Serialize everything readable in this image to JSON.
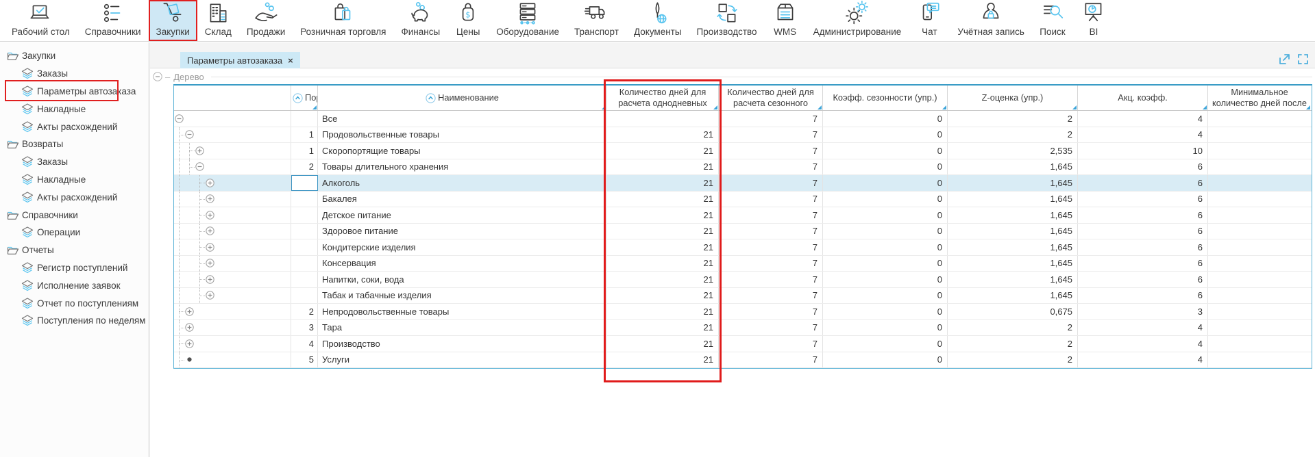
{
  "toolbar": {
    "active_id": "purchases",
    "items": [
      {
        "id": "desktop",
        "icon": "desktop-icon",
        "label": "Рабочий стол"
      },
      {
        "id": "directories",
        "icon": "directories-icon",
        "label": "Справочники"
      },
      {
        "id": "purchases",
        "icon": "purchases-icon",
        "label": "Закупки"
      },
      {
        "id": "warehouse",
        "icon": "warehouse-icon",
        "label": "Склад"
      },
      {
        "id": "sales",
        "icon": "sales-icon",
        "label": "Продажи"
      },
      {
        "id": "retail",
        "icon": "retail-icon",
        "label": "Розничная торговля"
      },
      {
        "id": "finance",
        "icon": "finance-icon",
        "label": "Финансы"
      },
      {
        "id": "prices",
        "icon": "prices-icon",
        "label": "Цены"
      },
      {
        "id": "equipment",
        "icon": "equipment-icon",
        "label": "Оборудование"
      },
      {
        "id": "transport",
        "icon": "transport-icon",
        "label": "Транспорт"
      },
      {
        "id": "documents",
        "icon": "documents-icon",
        "label": "Документы"
      },
      {
        "id": "production",
        "icon": "production-icon",
        "label": "Производство"
      },
      {
        "id": "wms",
        "icon": "wms-icon",
        "label": "WMS"
      },
      {
        "id": "admin",
        "icon": "admin-icon",
        "label": "Администрирование"
      },
      {
        "id": "chat",
        "icon": "chat-icon",
        "label": "Чат"
      },
      {
        "id": "account",
        "icon": "account-icon",
        "label": "Учётная запись"
      },
      {
        "id": "search",
        "icon": "search-icon",
        "label": "Поиск"
      },
      {
        "id": "bi",
        "icon": "bi-icon",
        "label": "BI"
      }
    ]
  },
  "sidebar": {
    "entries": [
      {
        "type": "group",
        "id": "purchases",
        "label": "Закупки"
      },
      {
        "type": "item",
        "id": "orders",
        "label": "Заказы"
      },
      {
        "type": "item",
        "id": "auto-order-params",
        "label": "Параметры автозаказа",
        "highlighted": true
      },
      {
        "type": "item",
        "id": "invoices",
        "label": "Накладные"
      },
      {
        "type": "item",
        "id": "discrepancy-acts",
        "label": "Акты расхождений"
      },
      {
        "type": "group",
        "id": "returns",
        "label": "Возвраты"
      },
      {
        "type": "item",
        "id": "orders-returns",
        "label": "Заказы"
      },
      {
        "type": "item",
        "id": "invoices-returns",
        "label": "Накладные"
      },
      {
        "type": "item",
        "id": "discrepancy-acts-returns",
        "label": "Акты расхождений"
      },
      {
        "type": "group",
        "id": "directories",
        "label": "Справочники"
      },
      {
        "type": "item",
        "id": "operations",
        "label": "Операции"
      },
      {
        "type": "group",
        "id": "reports",
        "label": "Отчеты"
      },
      {
        "type": "item",
        "id": "receipts-register",
        "label": "Регистр поступлений"
      },
      {
        "type": "item",
        "id": "requests-execution",
        "label": "Исполнение заявок"
      },
      {
        "type": "item",
        "id": "receipts-report",
        "label": "Отчет по поступлениям"
      },
      {
        "type": "item",
        "id": "receipts-by-weeks",
        "label": "Поступления по неделям"
      }
    ]
  },
  "tab": {
    "label": "Параметры автозаказа",
    "close": "×"
  },
  "panel": {
    "label": "Дерево"
  },
  "window_icons": [
    {
      "id": "open-in-window",
      "icon": "open-arrow-icon"
    },
    {
      "id": "fullscreen",
      "icon": "fullscreen-icon"
    }
  ],
  "table": {
    "columns": [
      {
        "id": "tree",
        "label": ""
      },
      {
        "id": "order",
        "label": "Пор",
        "sort_icon": true
      },
      {
        "id": "name",
        "label": "Наименование",
        "sort_icon": true
      },
      {
        "id": "days_oneday",
        "label": "Количество дней для расчета однодневных",
        "highlighted": true
      },
      {
        "id": "days_seasonal",
        "label": "Количество дней для расчета сезонного"
      },
      {
        "id": "seasonality_coeff",
        "label": "Коэфф. сезонности (упр.)"
      },
      {
        "id": "z_score",
        "label": "Z-оценка (упр.)"
      },
      {
        "id": "promo_coeff",
        "label": "Акц. коэфф."
      },
      {
        "id": "min_days_after",
        "label": "Минимальное количество дней после"
      }
    ],
    "rows": [
      {
        "name": "Все",
        "order": "",
        "level": 0,
        "expander": "minus",
        "guides": [],
        "values": [
          "",
          "7",
          "0",
          "2",
          "4",
          ""
        ]
      },
      {
        "name": "Продовольственные товары",
        "order": "1",
        "level": 1,
        "expander": "minus",
        "guides": [
          0
        ],
        "values": [
          "21",
          "7",
          "0",
          "2",
          "4",
          ""
        ]
      },
      {
        "name": "Скоропортящие товары",
        "order": "1",
        "level": 2,
        "expander": "plus",
        "guides": [
          0,
          1
        ],
        "values": [
          "21",
          "7",
          "0",
          "2,535",
          "10",
          ""
        ]
      },
      {
        "name": "Товары длительного хранения",
        "order": "2",
        "level": 2,
        "expander": "minus",
        "guides": [
          0,
          1
        ],
        "values": [
          "21",
          "7",
          "0",
          "1,645",
          "6",
          ""
        ]
      },
      {
        "name": "Алкоголь",
        "order": "",
        "level": 3,
        "expander": "plus",
        "guides": [
          0,
          2
        ],
        "values": [
          "21",
          "7",
          "0",
          "1,645",
          "6",
          ""
        ],
        "selected": true,
        "focused_cell": "order"
      },
      {
        "name": "Бакалея",
        "order": "",
        "level": 3,
        "expander": "plus",
        "guides": [
          0,
          2
        ],
        "values": [
          "21",
          "7",
          "0",
          "1,645",
          "6",
          ""
        ]
      },
      {
        "name": "Детское питание",
        "order": "",
        "level": 3,
        "expander": "plus",
        "guides": [
          0,
          2
        ],
        "values": [
          "21",
          "7",
          "0",
          "1,645",
          "6",
          ""
        ]
      },
      {
        "name": "Здоровое питание",
        "order": "",
        "level": 3,
        "expander": "plus",
        "guides": [
          0,
          2
        ],
        "values": [
          "21",
          "7",
          "0",
          "1,645",
          "6",
          ""
        ]
      },
      {
        "name": "Кондитерские изделия",
        "order": "",
        "level": 3,
        "expander": "plus",
        "guides": [
          0,
          2
        ],
        "values": [
          "21",
          "7",
          "0",
          "1,645",
          "6",
          ""
        ]
      },
      {
        "name": "Консервация",
        "order": "",
        "level": 3,
        "expander": "plus",
        "guides": [
          0,
          2
        ],
        "values": [
          "21",
          "7",
          "0",
          "1,645",
          "6",
          ""
        ]
      },
      {
        "name": "Напитки, соки, вода",
        "order": "",
        "level": 3,
        "expander": "plus",
        "guides": [
          0,
          2
        ],
        "values": [
          "21",
          "7",
          "0",
          "1,645",
          "6",
          ""
        ]
      },
      {
        "name": "Табак и табачные изделия",
        "order": "",
        "level": 3,
        "expander": "plus",
        "guides": [
          0,
          2
        ],
        "values": [
          "21",
          "7",
          "0",
          "1,645",
          "6",
          ""
        ]
      },
      {
        "name": "Непродовольственные товары",
        "order": "2",
        "level": 1,
        "expander": "plus",
        "guides": [
          0
        ],
        "values": [
          "21",
          "7",
          "0",
          "0,675",
          "3",
          ""
        ]
      },
      {
        "name": "Тара",
        "order": "3",
        "level": 1,
        "expander": "plus",
        "guides": [
          0
        ],
        "values": [
          "21",
          "7",
          "0",
          "2",
          "4",
          ""
        ]
      },
      {
        "name": "Производство",
        "order": "4",
        "level": 1,
        "expander": "plus",
        "guides": [
          0
        ],
        "values": [
          "21",
          "7",
          "0",
          "2",
          "4",
          ""
        ]
      },
      {
        "name": "Услуги",
        "order": "5",
        "level": 1,
        "expander": "dot",
        "guides": [
          0
        ],
        "values": [
          "21",
          "7",
          "0",
          "2",
          "4",
          ""
        ]
      }
    ]
  }
}
